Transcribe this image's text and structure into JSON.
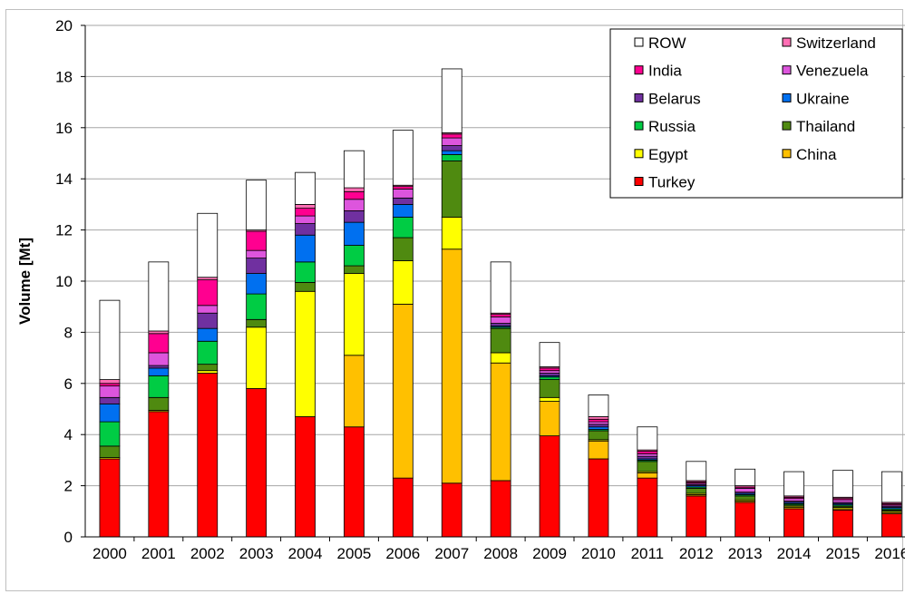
{
  "chart_data": {
    "type": "bar",
    "stacked": true,
    "ylabel": "Volume [Mt]",
    "xlabel": "",
    "ylim": [
      0,
      20
    ],
    "yticks": [
      0,
      2,
      4,
      6,
      8,
      10,
      12,
      14,
      16,
      18,
      20
    ],
    "grid": "horizontal",
    "legend_position": "top-right",
    "categories": [
      "2000",
      "2001",
      "2002",
      "2003",
      "2004",
      "2005",
      "2006",
      "2007",
      "2008",
      "2009",
      "2010",
      "2011",
      "2012",
      "2013",
      "2014",
      "2015",
      "2016"
    ],
    "legend_order": [
      "ROW",
      "Switzerland",
      "India",
      "Venezuela",
      "Belarus",
      "Ukraine",
      "Russia",
      "Thailand",
      "Egypt",
      "China",
      "Turkey"
    ],
    "series": [
      {
        "name": "Turkey",
        "color": "#ff0000",
        "values": [
          3.05,
          4.9,
          6.4,
          5.8,
          4.7,
          4.3,
          2.3,
          2.1,
          2.2,
          3.95,
          3.05,
          2.3,
          1.6,
          1.35,
          1.1,
          1.05,
          0.9
        ]
      },
      {
        "name": "China",
        "color": "#ffc000",
        "values": [
          0,
          0,
          0,
          0,
          0,
          2.8,
          6.8,
          9.15,
          4.6,
          1.35,
          0.7,
          0.2,
          0.05,
          0.05,
          0.05,
          0.05,
          0.05
        ]
      },
      {
        "name": "Egypt",
        "color": "#ffff00",
        "values": [
          0.05,
          0.05,
          0.1,
          2.4,
          4.9,
          3.2,
          1.7,
          1.25,
          0.4,
          0.15,
          0.05,
          0.05,
          0.05,
          0.05,
          0.05,
          0.05,
          0.05
        ]
      },
      {
        "name": "Thailand",
        "color": "#4f8a10",
        "values": [
          0.45,
          0.5,
          0.25,
          0.3,
          0.35,
          0.3,
          0.9,
          2.2,
          0.95,
          0.7,
          0.35,
          0.4,
          0.2,
          0.15,
          0.05,
          0.05,
          0.05
        ]
      },
      {
        "name": "Russia",
        "color": "#00cc44",
        "values": [
          0.95,
          0.85,
          0.9,
          1.0,
          0.8,
          0.8,
          0.8,
          0.25,
          0.05,
          0.1,
          0.05,
          0.05,
          0.05,
          0.05,
          0.05,
          0.05,
          0.05
        ]
      },
      {
        "name": "Ukraine",
        "color": "#0070f0",
        "values": [
          0.7,
          0.3,
          0.5,
          0.8,
          1.05,
          0.9,
          0.5,
          0.15,
          0.05,
          0.05,
          0.1,
          0.05,
          0.05,
          0.05,
          0.05,
          0.05,
          0.05
        ]
      },
      {
        "name": "Belarus",
        "color": "#7030a0",
        "values": [
          0.25,
          0.1,
          0.6,
          0.6,
          0.45,
          0.45,
          0.25,
          0.2,
          0.1,
          0.1,
          0.1,
          0.1,
          0.05,
          0.05,
          0.05,
          0.05,
          0.05
        ]
      },
      {
        "name": "Venezuela",
        "color": "#dd55dd",
        "values": [
          0.45,
          0.5,
          0.3,
          0.3,
          0.3,
          0.45,
          0.35,
          0.3,
          0.25,
          0.1,
          0.1,
          0.1,
          0.05,
          0.15,
          0.1,
          0.1,
          0.05
        ]
      },
      {
        "name": "India",
        "color": "#ff0090",
        "values": [
          0.1,
          0.75,
          1.0,
          0.75,
          0.3,
          0.3,
          0.1,
          0.15,
          0.1,
          0.1,
          0.1,
          0.1,
          0.05,
          0.05,
          0.05,
          0.05,
          0.05
        ]
      },
      {
        "name": "Switzerland",
        "color": "#ff6eb4",
        "values": [
          0.15,
          0.1,
          0.1,
          0.05,
          0.15,
          0.15,
          0.05,
          0.05,
          0.05,
          0.05,
          0.1,
          0.05,
          0.05,
          0.05,
          0.05,
          0.05,
          0.05
        ]
      },
      {
        "name": "ROW",
        "color": "#ffffff",
        "values": [
          3.1,
          2.7,
          2.5,
          1.95,
          1.25,
          1.45,
          2.15,
          2.5,
          2.0,
          0.95,
          0.85,
          0.9,
          0.75,
          0.65,
          0.95,
          1.05,
          1.2
        ]
      }
    ]
  }
}
